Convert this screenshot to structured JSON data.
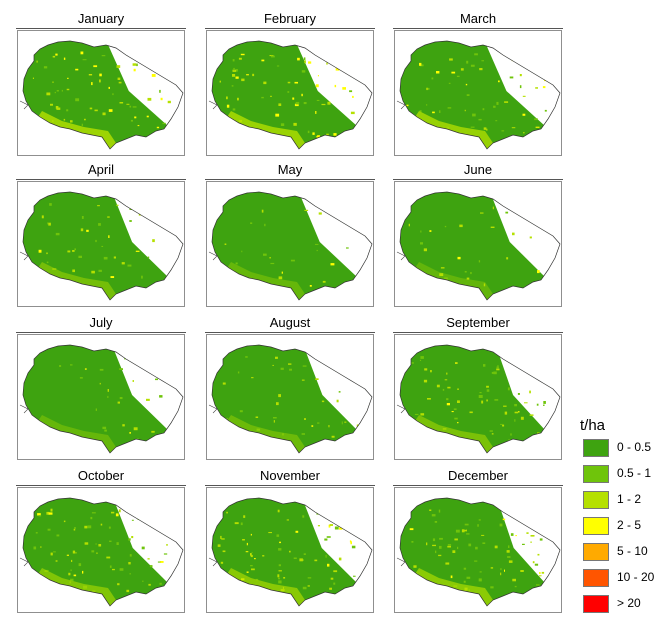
{
  "panels": [
    {
      "month": "January",
      "veg": 0.26,
      "high": 0.24,
      "gap": 0.85
    },
    {
      "month": "February",
      "veg": 0.26,
      "high": 0.23,
      "gap": 0.85
    },
    {
      "month": "March",
      "veg": 0.25,
      "high": 0.22,
      "gap": 0.8
    },
    {
      "month": "April",
      "veg": 0.16,
      "high": 0.1,
      "gap": 0.6
    },
    {
      "month": "May",
      "veg": 0.1,
      "high": 0.05,
      "gap": 0.7
    },
    {
      "month": "June",
      "veg": 0.1,
      "high": 0.04,
      "gap": 0.55
    },
    {
      "month": "July",
      "veg": 0.1,
      "high": 0.05,
      "gap": 0.6
    },
    {
      "month": "August",
      "veg": 0.14,
      "high": 0.07,
      "gap": 0.5
    },
    {
      "month": "September",
      "veg": 0.26,
      "high": 0.12,
      "gap": 0.3
    },
    {
      "month": "October",
      "veg": 0.3,
      "high": 0.15,
      "gap": 0.55
    },
    {
      "month": "November",
      "veg": 0.3,
      "high": 0.17,
      "gap": 0.55
    },
    {
      "month": "December",
      "veg": 0.32,
      "high": 0.18,
      "gap": 0.25
    }
  ],
  "legend": {
    "title": "t/ha",
    "items": [
      {
        "label": "0 - 0.5",
        "color": "#3ea310"
      },
      {
        "label": "0.5 - 1",
        "color": "#6fc40b"
      },
      {
        "label": "1 - 2",
        "color": "#b5e000"
      },
      {
        "label": "2 - 5",
        "color": "#ffff00"
      },
      {
        "label": "5 - 10",
        "color": "#ffaa00"
      },
      {
        "label": "10 - 20",
        "color": "#ff5500"
      },
      {
        "label": "> 20",
        "color": "#ff0000"
      }
    ]
  }
}
